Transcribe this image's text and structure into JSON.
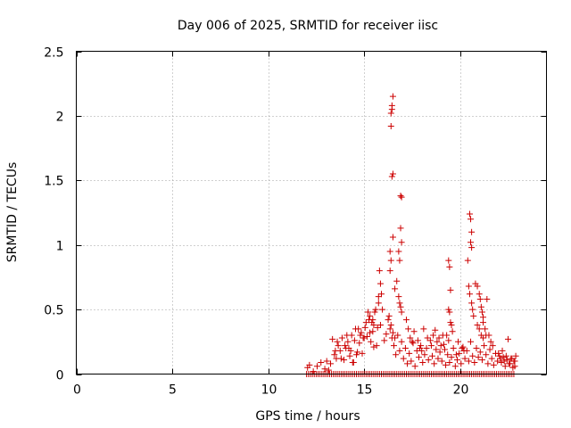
{
  "chart_data": {
    "type": "scatter",
    "title": "Day 006 of 2025, SRMTID for receiver iisc",
    "xlabel": "GPS time / hours",
    "ylabel": "SRMTID / TECUs",
    "xlim": [
      0,
      24.5
    ],
    "ylim": [
      0,
      2.5
    ],
    "x_ticks": [
      0,
      5,
      10,
      15,
      20
    ],
    "x_tick_labels": [
      "0",
      "5",
      "10",
      "15",
      "20"
    ],
    "y_ticks": [
      0,
      0.5,
      1,
      1.5,
      2,
      2.5
    ],
    "y_tick_labels": [
      "0",
      "0.5",
      "1",
      "1.5",
      "2",
      "2.5"
    ],
    "grid": true,
    "marker": "+",
    "series": [
      {
        "name": "SRMTID",
        "color": "#cc0000",
        "x": [
          12.0,
          12.1,
          12.2,
          12.3,
          12.4,
          12.5,
          12.6,
          12.7,
          12.8,
          12.9,
          13.0,
          13.1,
          13.2,
          13.3,
          13.4,
          13.5,
          13.6,
          13.7,
          13.8,
          13.9,
          14.0,
          14.1,
          14.2,
          14.3,
          14.4,
          14.5,
          14.6,
          14.7,
          14.8,
          14.9,
          15.0,
          15.1,
          15.2,
          15.3,
          15.4,
          15.5,
          15.6,
          15.7,
          15.8,
          15.9,
          16.0,
          16.1,
          16.2,
          16.3,
          16.4,
          16.5,
          16.6,
          16.7,
          16.8,
          16.9,
          17.0,
          17.1,
          17.2,
          17.3,
          17.4,
          17.5,
          17.6,
          17.7,
          17.8,
          17.9,
          18.0,
          18.1,
          18.2,
          18.3,
          18.4,
          18.5,
          18.6,
          18.7,
          18.8,
          18.9,
          19.0,
          19.1,
          19.2,
          19.3,
          19.4,
          19.5,
          19.6,
          19.7,
          19.8,
          19.9,
          20.0,
          20.1,
          20.2,
          20.3,
          20.4,
          20.5,
          20.6,
          20.7,
          20.8,
          20.9,
          21.0,
          21.1,
          21.2,
          21.3,
          21.4,
          21.5,
          21.6,
          21.7,
          21.8,
          21.9,
          22.0,
          22.1,
          22.2,
          22.3,
          22.4,
          22.5,
          22.6,
          22.7,
          22.8,
          12.05,
          12.15,
          12.35,
          12.55,
          12.75,
          12.95,
          13.05,
          13.15,
          13.25,
          13.35,
          13.45,
          13.55,
          13.65,
          13.75,
          13.85,
          13.95,
          14.05,
          14.15,
          14.25,
          14.35,
          14.45,
          14.55,
          14.65,
          14.75,
          14.85,
          14.95,
          15.05,
          15.15,
          15.25,
          15.35,
          15.45,
          15.55,
          15.65,
          15.75,
          15.85,
          15.95,
          16.05,
          16.15,
          16.25,
          16.35,
          16.45,
          16.55,
          16.65,
          16.75,
          16.85,
          16.95,
          17.05,
          17.15,
          17.25,
          17.35,
          17.45,
          17.55,
          17.65,
          17.75,
          17.85,
          17.95,
          18.05,
          18.15,
          18.25,
          18.35,
          18.45,
          18.55,
          18.65,
          18.75,
          18.85,
          18.95,
          19.05,
          19.15,
          19.25,
          19.35,
          19.45,
          19.55,
          19.65,
          19.75,
          19.85,
          19.95,
          20.05,
          20.15,
          20.25,
          20.35,
          20.45,
          20.55,
          20.65,
          20.75,
          20.85,
          20.95,
          21.05,
          21.15,
          21.25,
          21.35,
          21.45,
          21.55,
          21.65,
          21.75,
          21.85,
          21.95,
          22.05,
          22.15,
          22.25,
          22.35,
          22.45,
          22.55,
          22.65,
          22.75,
          22.85,
          16.4,
          16.4,
          16.45,
          16.45,
          16.5,
          16.5,
          16.45,
          16.5,
          16.9,
          16.95,
          16.8,
          16.85,
          16.9,
          16.95,
          16.35,
          16.4,
          16.35,
          16.8,
          16.85,
          16.9,
          16.95,
          16.6,
          16.7,
          15.8,
          15.85,
          15.9,
          15.75,
          15.3,
          15.4,
          15.5,
          15.2,
          15.45,
          15.6,
          15.7,
          16.3,
          16.4,
          16.5,
          16.6,
          17.2,
          17.3,
          17.4,
          17.5,
          17.6,
          17.8,
          17.9,
          18.0,
          18.6,
          18.7,
          18.8,
          18.9,
          19.0,
          19.4,
          19.45,
          19.5,
          19.4,
          19.45,
          19.5,
          19.55,
          19.6,
          19.3,
          19.4,
          20.5,
          20.55,
          20.6,
          20.55,
          20.6,
          20.4,
          20.45,
          20.5,
          20.6,
          20.65,
          20.7,
          20.8,
          20.9,
          21.0,
          21.05,
          21.1,
          21.15,
          21.2,
          20.9,
          21.0,
          21.1,
          21.2,
          21.4,
          21.5,
          21.6,
          21.7,
          21.3,
          21.35,
          21.2,
          22.0,
          22.1,
          22.2,
          22.3,
          22.4,
          22.5,
          22.6,
          22.7,
          14.0,
          14.1,
          14.3,
          14.5,
          14.7,
          14.9,
          15.0,
          15.1,
          15.3,
          15.5,
          13.5,
          13.6,
          13.8,
          14.2,
          14.4,
          14.6,
          14.8,
          18.1,
          18.3,
          18.5,
          19.1,
          19.2,
          19.8,
          19.9,
          20.1,
          20.2,
          22.8,
          22.85,
          22.9
        ],
        "y": [
          0,
          0,
          0,
          0,
          0,
          0,
          0,
          0,
          0,
          0,
          0,
          0,
          0,
          0,
          0,
          0,
          0,
          0,
          0,
          0,
          0,
          0,
          0,
          0,
          0,
          0,
          0,
          0,
          0,
          0,
          0,
          0,
          0,
          0,
          0,
          0,
          0,
          0,
          0,
          0,
          0,
          0,
          0,
          0,
          0,
          0,
          0,
          0,
          0,
          0,
          0,
          0,
          0,
          0,
          0,
          0,
          0,
          0,
          0,
          0,
          0,
          0,
          0,
          0,
          0,
          0,
          0,
          0,
          0,
          0,
          0,
          0,
          0,
          0,
          0,
          0,
          0,
          0,
          0,
          0,
          0,
          0,
          0,
          0,
          0,
          0,
          0,
          0,
          0,
          0,
          0,
          0,
          0,
          0,
          0,
          0,
          0,
          0,
          0,
          0,
          0,
          0,
          0,
          0,
          0,
          0,
          0,
          0,
          0,
          0.05,
          0.07,
          0.02,
          0.06,
          0.09,
          0.04,
          0.1,
          0.03,
          0.08,
          0.27,
          0.15,
          0.12,
          0.22,
          0.18,
          0.28,
          0.11,
          0.2,
          0.25,
          0.14,
          0.3,
          0.09,
          0.35,
          0.17,
          0.24,
          0.32,
          0.28,
          0.36,
          0.29,
          0.42,
          0.25,
          0.33,
          0.48,
          0.22,
          0.6,
          0.38,
          0.5,
          0.26,
          0.31,
          0.42,
          0.35,
          0.28,
          0.22,
          0.15,
          0.3,
          0.18,
          0.25,
          0.12,
          0.2,
          0.08,
          0.16,
          0.1,
          0.24,
          0.06,
          0.18,
          0.13,
          0.22,
          0.09,
          0.15,
          0.2,
          0.11,
          0.26,
          0.14,
          0.08,
          0.19,
          0.12,
          0.17,
          0.1,
          0.23,
          0.07,
          0.15,
          0.09,
          0.13,
          0.2,
          0.06,
          0.11,
          0.16,
          0.08,
          0.21,
          0.12,
          0.18,
          0.1,
          0.25,
          0.14,
          0.09,
          0.2,
          0.13,
          0.17,
          0.11,
          0.22,
          0.15,
          0.08,
          0.19,
          0.12,
          0.07,
          0.16,
          0.1,
          0.14,
          0.09,
          0.13,
          0.06,
          0.11,
          0.08,
          0.12,
          0.05,
          0.1,
          1.92,
          2.02,
          2.05,
          2.08,
          2.15,
          1.55,
          1.53,
          1.06,
          1.38,
          1.37,
          0.95,
          0.88,
          1.13,
          1.02,
          0.95,
          0.88,
          0.8,
          0.6,
          0.55,
          0.52,
          0.48,
          0.66,
          0.72,
          0.8,
          0.7,
          0.62,
          0.55,
          0.45,
          0.4,
          0.38,
          0.48,
          0.42,
          0.5,
          0.36,
          0.45,
          0.38,
          0.32,
          0.28,
          0.42,
          0.35,
          0.28,
          0.25,
          0.33,
          0.26,
          0.2,
          0.18,
          0.3,
          0.34,
          0.25,
          0.28,
          0.22,
          0.88,
          0.83,
          0.65,
          0.5,
          0.48,
          0.4,
          0.38,
          0.33,
          0.3,
          0.26,
          1.24,
          1.2,
          1.1,
          1.02,
          0.98,
          0.88,
          0.68,
          0.62,
          0.55,
          0.5,
          0.45,
          0.7,
          0.68,
          0.62,
          0.58,
          0.52,
          0.48,
          0.44,
          0.38,
          0.35,
          0.3,
          0.28,
          0.58,
          0.3,
          0.25,
          0.22,
          0.35,
          0.3,
          0.4,
          0.16,
          0.12,
          0.18,
          0.1,
          0.14,
          0.27,
          0.08,
          0.12,
          0.22,
          0.3,
          0.18,
          0.26,
          0.35,
          0.16,
          0.28,
          0.4,
          0.32,
          0.21,
          0.18,
          0.25,
          0.12,
          0.2,
          0.09,
          0.15,
          0.3,
          0.35,
          0.28,
          0.22,
          0.3,
          0.19,
          0.15,
          0.25,
          0.2,
          0.18,
          0.1,
          0.06,
          0.14
        ]
      }
    ]
  }
}
